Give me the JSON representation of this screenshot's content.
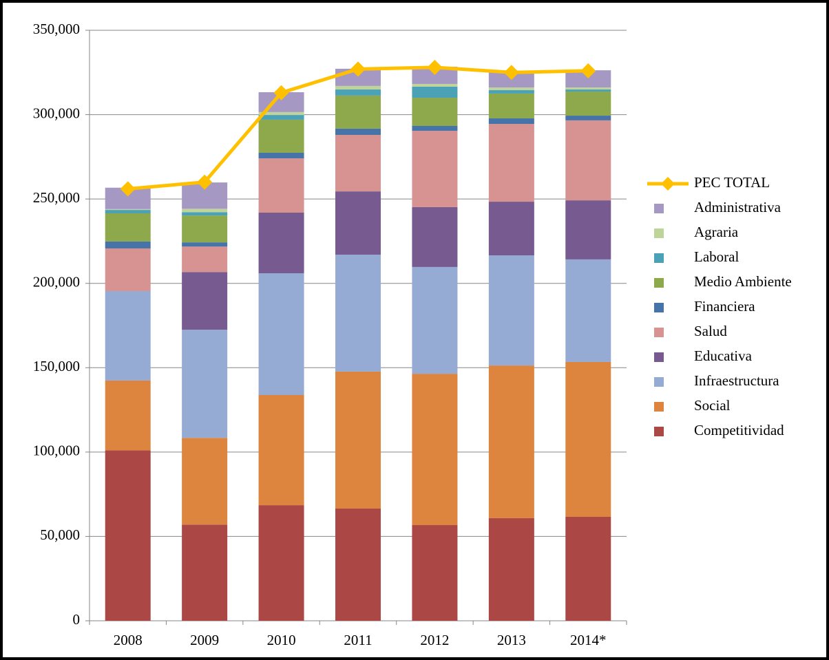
{
  "chart_data": {
    "type": "bar",
    "stacked": true,
    "categories": [
      "2008",
      "2009",
      "2010",
      "2011",
      "2012",
      "2013",
      "2014*"
    ],
    "ylim": [
      0,
      350000
    ],
    "yticks": [
      {
        "value": 0,
        "label": "0"
      },
      {
        "value": 50000,
        "label": "50,000"
      },
      {
        "value": 100000,
        "label": "100,000"
      },
      {
        "value": 150000,
        "label": "150,000"
      },
      {
        "value": 200000,
        "label": "200,000"
      },
      {
        "value": 250000,
        "label": "250,000"
      },
      {
        "value": 300000,
        "label": "300,000"
      },
      {
        "value": 350000,
        "label": "350,000"
      }
    ],
    "grid": true,
    "legend": "right",
    "series": [
      {
        "name": "Competitividad",
        "color": "#ab4744",
        "values": [
          101000,
          57000,
          68500,
          66500,
          56700,
          60800,
          61600
        ]
      },
      {
        "name": "Social",
        "color": "#dd843f",
        "values": [
          41400,
          51400,
          65300,
          81200,
          89700,
          90500,
          91800
        ]
      },
      {
        "name": "Infraestructura",
        "color": "#95abd3",
        "values": [
          53000,
          64100,
          72200,
          69300,
          63300,
          65300,
          60800
        ]
      },
      {
        "name": "Educativa",
        "color": "#765a90",
        "values": [
          0,
          34200,
          35900,
          37500,
          35500,
          31800,
          35000
        ]
      },
      {
        "name": "Salud",
        "color": "#d69391",
        "values": [
          25300,
          15100,
          32200,
          33500,
          45200,
          46100,
          47400
        ]
      },
      {
        "name": "Financiera",
        "color": "#4673a8",
        "values": [
          4100,
          2500,
          3300,
          3700,
          2900,
          3300,
          2800
        ]
      },
      {
        "name": "Medio Ambiente",
        "color": "#8ea84c",
        "values": [
          16700,
          15900,
          19600,
          19600,
          16700,
          14700,
          14300
        ]
      },
      {
        "name": "Laboral",
        "color": "#4ba1b6",
        "values": [
          2000,
          2000,
          2800,
          3600,
          6600,
          2000,
          1200
        ]
      },
      {
        "name": "Agraria",
        "color": "#bfd49a",
        "values": [
          500,
          2000,
          1700,
          2100,
          1600,
          1600,
          1200
        ]
      },
      {
        "name": "Administrativa",
        "color": "#a599c4",
        "values": [
          12700,
          15600,
          11800,
          10200,
          10200,
          9000,
          10200
        ]
      },
      {
        "name": "PEC TOTAL",
        "type": "line",
        "color": "#ffc000",
        "values": [
          256000,
          260000,
          313000,
          327000,
          328000,
          325000,
          326000
        ]
      }
    ]
  }
}
